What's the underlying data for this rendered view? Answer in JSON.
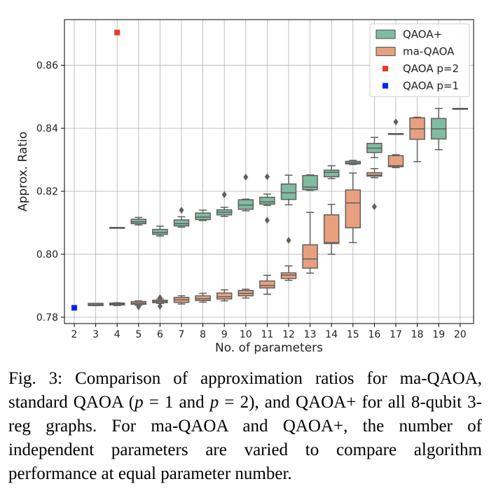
{
  "chart_data": {
    "type": "box",
    "xlabel": "No. of parameters",
    "ylabel": "Approx. Ratio",
    "categories": [
      "2",
      "3",
      "4",
      "5",
      "6",
      "7",
      "8",
      "9",
      "10",
      "11",
      "12",
      "13",
      "14",
      "15",
      "16",
      "17",
      "18",
      "19",
      "20"
    ],
    "ylim": [
      0.778,
      0.8745
    ],
    "yticks": [
      0.78,
      0.8,
      0.82,
      0.84,
      0.86
    ],
    "ytick_labels": [
      "0.78",
      "0.80",
      "0.82",
      "0.84",
      "0.86"
    ],
    "grid": true,
    "legend_placement": "top-right",
    "series": [
      {
        "name": "QAOA+",
        "color": "#7fbca2",
        "boxes": [
          {
            "x": "4",
            "whislo": 0.8085,
            "q1": 0.8085,
            "med": 0.8085,
            "q3": 0.8085,
            "whishi": 0.8085,
            "fliers": []
          },
          {
            "x": "5",
            "whislo": 0.8093,
            "q1": 0.8097,
            "med": 0.8103,
            "q3": 0.8111,
            "whishi": 0.8117,
            "fliers": []
          },
          {
            "x": "6",
            "whislo": 0.8058,
            "q1": 0.8063,
            "med": 0.8069,
            "q3": 0.8079,
            "whishi": 0.8089,
            "fliers": []
          },
          {
            "x": "7",
            "whislo": 0.8086,
            "q1": 0.809,
            "med": 0.8097,
            "q3": 0.8109,
            "whishi": 0.8119,
            "fliers": [
              0.814
            ]
          },
          {
            "x": "8",
            "whislo": 0.8107,
            "q1": 0.811,
            "med": 0.8118,
            "q3": 0.8131,
            "whishi": 0.814,
            "fliers": []
          },
          {
            "x": "9",
            "whislo": 0.812,
            "q1": 0.8125,
            "med": 0.8133,
            "q3": 0.8141,
            "whishi": 0.8149,
            "fliers": [
              0.8189
            ]
          },
          {
            "x": "10",
            "whislo": 0.8138,
            "q1": 0.8143,
            "med": 0.8156,
            "q3": 0.8173,
            "whishi": 0.8175,
            "fliers": [
              0.8245
            ]
          },
          {
            "x": "11",
            "whislo": 0.8155,
            "q1": 0.8159,
            "med": 0.8166,
            "q3": 0.8181,
            "whishi": 0.8191,
            "fliers": [
              0.8108,
              0.8246
            ]
          },
          {
            "x": "12",
            "whislo": 0.8157,
            "q1": 0.8174,
            "med": 0.8195,
            "q3": 0.8223,
            "whishi": 0.8251,
            "fliers": []
          },
          {
            "x": "13",
            "whislo": 0.8203,
            "q1": 0.8205,
            "med": 0.8213,
            "q3": 0.825,
            "whishi": 0.8252,
            "fliers": []
          },
          {
            "x": "14",
            "whislo": 0.824,
            "q1": 0.8246,
            "med": 0.826,
            "q3": 0.8267,
            "whishi": 0.8281,
            "fliers": []
          },
          {
            "x": "15",
            "whislo": 0.8285,
            "q1": 0.8287,
            "med": 0.829,
            "q3": 0.8295,
            "whishi": 0.8298,
            "fliers": []
          },
          {
            "x": "16",
            "whislo": 0.8307,
            "q1": 0.8323,
            "med": 0.8337,
            "q3": 0.8352,
            "whishi": 0.8371,
            "fliers": []
          },
          {
            "x": "17",
            "whislo": 0.8383,
            "q1": 0.8383,
            "med": 0.8383,
            "q3": 0.8383,
            "whishi": 0.8383,
            "fliers": [
              0.842
            ]
          },
          {
            "x": "19",
            "whislo": 0.8332,
            "q1": 0.8366,
            "med": 0.8398,
            "q3": 0.8431,
            "whishi": 0.8463,
            "fliers": []
          },
          {
            "x": "20",
            "whislo": 0.8463,
            "q1": 0.8463,
            "med": 0.8463,
            "q3": 0.8463,
            "whishi": 0.8463,
            "fliers": []
          }
        ]
      },
      {
        "name": "ma-QAOA",
        "color": "#e9a07f",
        "boxes": [
          {
            "x": "3",
            "whislo": 0.7837,
            "q1": 0.7837,
            "med": 0.784,
            "q3": 0.7844,
            "whishi": 0.7844,
            "fliers": []
          },
          {
            "x": "4",
            "whislo": 0.7837,
            "q1": 0.7839,
            "med": 0.7842,
            "q3": 0.7845,
            "whishi": 0.7846,
            "fliers": []
          },
          {
            "x": "5",
            "whislo": 0.7838,
            "q1": 0.7841,
            "med": 0.7845,
            "q3": 0.785,
            "whishi": 0.7852,
            "fliers": [
              0.7833
            ]
          },
          {
            "x": "6",
            "whislo": 0.7844,
            "q1": 0.7846,
            "med": 0.785,
            "q3": 0.7854,
            "whishi": 0.7858,
            "fliers": [
              0.7835,
              0.7862
            ]
          },
          {
            "x": "7",
            "whislo": 0.7842,
            "q1": 0.7847,
            "med": 0.7855,
            "q3": 0.7863,
            "whishi": 0.7868,
            "fliers": []
          },
          {
            "x": "8",
            "whislo": 0.7848,
            "q1": 0.7853,
            "med": 0.7859,
            "q3": 0.7868,
            "whishi": 0.7876,
            "fliers": []
          },
          {
            "x": "9",
            "whislo": 0.7852,
            "q1": 0.7858,
            "med": 0.7865,
            "q3": 0.7877,
            "whishi": 0.7887,
            "fliers": []
          },
          {
            "x": "10",
            "whislo": 0.7861,
            "q1": 0.7868,
            "med": 0.7876,
            "q3": 0.7885,
            "whishi": 0.7889,
            "fliers": []
          },
          {
            "x": "11",
            "whislo": 0.7873,
            "q1": 0.7893,
            "med": 0.7901,
            "q3": 0.7915,
            "whishi": 0.7933,
            "fliers": []
          },
          {
            "x": "12",
            "whislo": 0.7917,
            "q1": 0.7923,
            "med": 0.7934,
            "q3": 0.7941,
            "whishi": 0.7963,
            "fliers": [
              0.8044
            ]
          },
          {
            "x": "13",
            "whislo": 0.794,
            "q1": 0.7956,
            "med": 0.7985,
            "q3": 0.803,
            "whishi": 0.8133,
            "fliers": []
          },
          {
            "x": "14",
            "whislo": 0.8,
            "q1": 0.8034,
            "med": 0.8037,
            "q3": 0.8125,
            "whishi": 0.8158,
            "fliers": []
          },
          {
            "x": "15",
            "whislo": 0.8037,
            "q1": 0.8084,
            "med": 0.8163,
            "q3": 0.8204,
            "whishi": 0.8258,
            "fliers": []
          },
          {
            "x": "16",
            "whislo": 0.8243,
            "q1": 0.8248,
            "med": 0.8251,
            "q3": 0.8259,
            "whishi": 0.8272,
            "fliers": [
              0.8151
            ]
          },
          {
            "x": "17",
            "whislo": 0.8275,
            "q1": 0.8278,
            "med": 0.8281,
            "q3": 0.8313,
            "whishi": 0.8316,
            "fliers": []
          },
          {
            "x": "18",
            "whislo": 0.8294,
            "q1": 0.8365,
            "med": 0.8398,
            "q3": 0.8433,
            "whishi": 0.8435,
            "fliers": []
          }
        ]
      }
    ],
    "points": [
      {
        "name": "QAOA p=2",
        "color": "#e8392a",
        "x": "4",
        "y": 0.8704
      },
      {
        "name": "QAOA p=1",
        "color": "#0b23f5",
        "x": "2",
        "y": 0.783
      }
    ]
  },
  "caption": {
    "part1": "Fig. 3: Comparison of approximation ratios for ma-QAOA, standard QAOA (",
    "p_symbol": "p",
    "part2": " = 1 and ",
    "part3": " = 2), and QAOA+ for all 8-qubit 3-reg graphs. For ma-QAOA and QAOA+, the number of independent parameters are varied to compare algorithm performance at equal parameter number."
  }
}
